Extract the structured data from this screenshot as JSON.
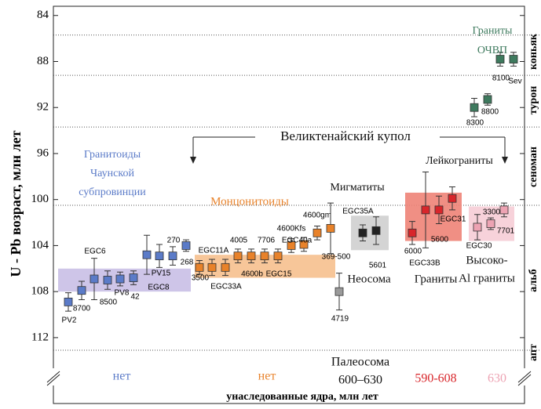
{
  "chart_data": {
    "type": "scatter",
    "y_label": "U - Pb возраст, млн лет",
    "x_label": "унаследованные ядра, млн лет",
    "ylim": [
      83.2,
      113.9
    ],
    "yticks": [
      84,
      88,
      92,
      96,
      100,
      104,
      108,
      112
    ],
    "y_inverted": true,
    "stage_boundaries": [
      85.7,
      89.2,
      93.7,
      100.5,
      113.1
    ],
    "stages": [
      "коньяк",
      "турон",
      "сеноман",
      "альб",
      "апт"
    ],
    "series": [
      {
        "color": "#5b7bc8",
        "range": [
          106.0,
          108.0
        ],
        "range_color": "#c9bfe6",
        "labels": [
          "PV2",
          "8700",
          "EGC6",
          "8500",
          "PV8",
          "42",
          "EGC8",
          "PV15",
          "270",
          "268"
        ],
        "values": [
          108.9,
          107.9,
          106.9,
          107.0,
          106.9,
          106.8,
          104.8,
          104.9,
          104.9,
          104.0
        ],
        "errors": [
          0.8,
          0.8,
          1.8,
          0.8,
          0.6,
          0.6,
          1.7,
          1.0,
          0.8,
          0.5
        ]
      },
      {
        "color": "#e8822a",
        "range": [
          104.8,
          106.8
        ],
        "range_color": "#f6c08e",
        "labels": [
          "3500",
          "EGC11A",
          "EGC33A",
          "4005",
          "4600b",
          "7706",
          "EGC15",
          "4600Kfs",
          "EGC40a",
          "4600gm",
          "369-500"
        ],
        "values": [
          105.9,
          105.9,
          105.9,
          104.9,
          104.9,
          104.9,
          104.9,
          104.0,
          103.9,
          102.9,
          102.5
        ],
        "errors": [
          0.6,
          0.7,
          0.7,
          0.6,
          0.6,
          0.6,
          0.6,
          0.6,
          0.6,
          0.6,
          2.2
        ]
      },
      {
        "color": "#9a9a9a",
        "labels": [
          "4719"
        ],
        "values": [
          108.0
        ],
        "errors": [
          1.6
        ]
      },
      {
        "color": "#222222",
        "range": [
          101.4,
          104.4
        ],
        "range_color": "#cfcfcf",
        "labels": [
          "EGC35A",
          "5601"
        ],
        "values": [
          102.9,
          102.7
        ],
        "errors": [
          0.7,
          1.2
        ]
      },
      {
        "color": "#d8262b",
        "range": [
          99.4,
          103.6
        ],
        "range_color": "#ee8377",
        "labels": [
          "6000",
          "EGC33B",
          "5600",
          "EGC31"
        ],
        "values": [
          102.9,
          100.9,
          100.9,
          99.9
        ],
        "errors": [
          1.0,
          3.3,
          1.2,
          1.0
        ]
      },
      {
        "color": "#eda3b3",
        "range": [
          100.6,
          103.6
        ],
        "range_color": "#f6cdd6",
        "labels": [
          "EGC30",
          "3300",
          "7701"
        ],
        "values": [
          102.4,
          102.1,
          100.9
        ],
        "errors": [
          1.1,
          0.5,
          0.6
        ]
      },
      {
        "color": "#3e7a5e",
        "labels": [
          "8300",
          "8800",
          "8100",
          "Sev"
        ],
        "values": [
          92.0,
          91.3,
          87.8,
          87.8
        ],
        "errors": [
          0.8,
          0.5,
          0.6,
          0.6
        ]
      }
    ],
    "annotations": [
      {
        "lines": [
          "Граниты",
          "ОЧВП"
        ],
        "color": "#3e7a5e"
      },
      {
        "lines": [
          "Гранитоиды",
          "Чаунской",
          "субпровинции"
        ],
        "color": "#5b7bc8"
      },
      {
        "lines": [
          "Великтенайский купол"
        ],
        "color": "#111111"
      },
      {
        "lines": [
          "Монцонитоиды"
        ],
        "color": "#e8822a"
      },
      {
        "lines": [
          "Мигматиты"
        ],
        "color": "#111111"
      },
      {
        "lines": [
          "Лейкограниты"
        ],
        "color": "#111111"
      },
      {
        "lines": [
          "Неосома"
        ],
        "color": "#111111"
      },
      {
        "lines": [
          "Граниты"
        ],
        "color": "#111111"
      },
      {
        "lines": [
          "Высоко-",
          "Al граниты"
        ],
        "color": "#111111"
      }
    ],
    "inherited_cores": [
      {
        "lines": [
          "нет"
        ],
        "color": "#5b7bc8"
      },
      {
        "lines": [
          "нет"
        ],
        "color": "#e8822a"
      },
      {
        "lines": [
          "Палеосома",
          "600–630"
        ],
        "color": "#111111"
      },
      {
        "lines": [
          "590-608"
        ],
        "color": "#d8262b"
      },
      {
        "lines": [
          "630"
        ],
        "color": "#eda3b3"
      }
    ]
  }
}
